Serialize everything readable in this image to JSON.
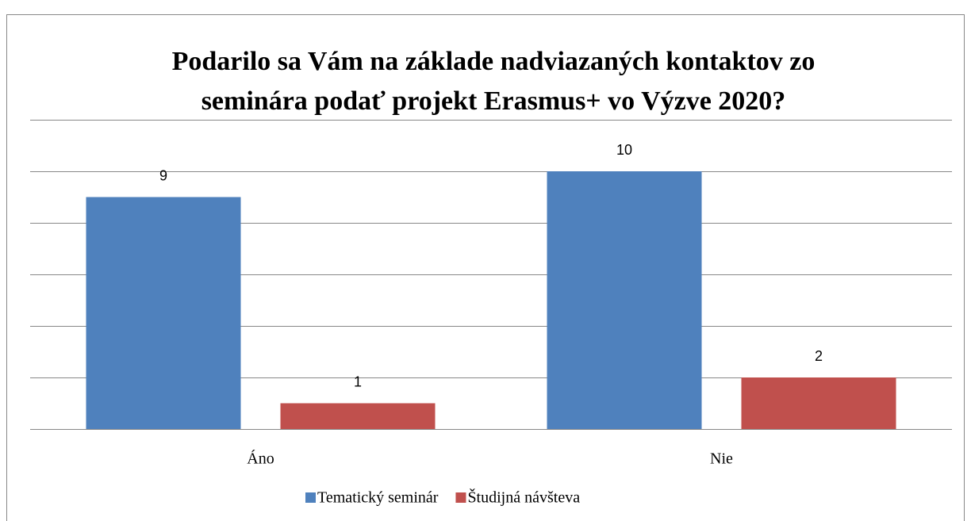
{
  "chart_data": {
    "type": "bar",
    "title": [
      "Podarilo sa Vám na základe nadviazaných kontaktov zo",
      "seminára podať projekt Erasmus+ vo Výzve 2020?"
    ],
    "categories": [
      "Áno",
      "Nie"
    ],
    "series": [
      {
        "name": "Tematický seminár",
        "color": "#4f81bd",
        "values": [
          9,
          10
        ]
      },
      {
        "name": "Študijná návšteva",
        "color": "#c0504d",
        "values": [
          1,
          2
        ]
      }
    ],
    "ylim": [
      0,
      12
    ],
    "yticks": [
      0,
      2,
      4,
      6,
      8,
      10,
      12
    ],
    "grid": true,
    "legend": "bottom"
  }
}
